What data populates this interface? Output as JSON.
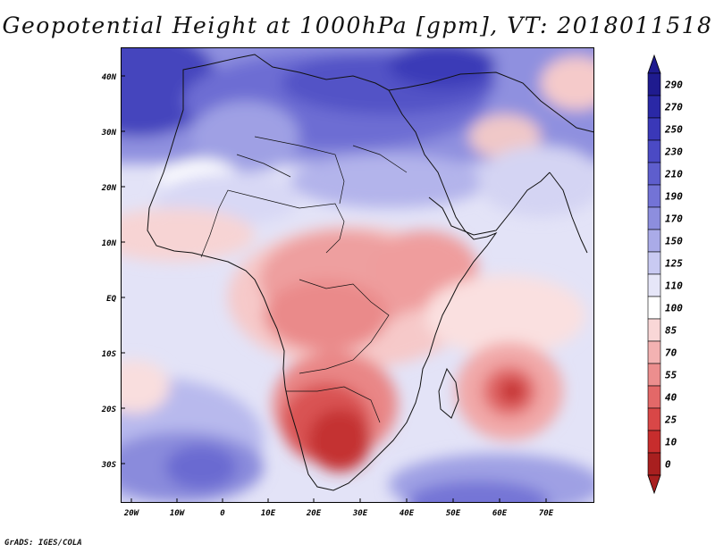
{
  "title": "Geopotential Height at 1000hPa [gpm], VT: 2018011518",
  "credit": "GrADS: IGES/COLA",
  "map": {
    "lat_axis": [
      "40N",
      "30N",
      "20N",
      "10N",
      "EQ",
      "10S",
      "20S",
      "30S"
    ],
    "lon_axis": [
      "20W",
      "10W",
      "0",
      "10E",
      "20E",
      "30E",
      "40E",
      "50E",
      "60E",
      "70E"
    ]
  },
  "colorbar": {
    "levels": [
      "290",
      "270",
      "250",
      "230",
      "210",
      "190",
      "170",
      "150",
      "125",
      "110",
      "100",
      "85",
      "70",
      "55",
      "40",
      "25",
      "10",
      "0"
    ],
    "colors": [
      "#1f1b8f",
      "#2a28a6",
      "#3a38b8",
      "#4b4ac4",
      "#5e5ecd",
      "#7373d6",
      "#8d8ede",
      "#aaabe8",
      "#c9caf2",
      "#e6e6f8",
      "#ffffff",
      "#f9d7d7",
      "#f3b2b2",
      "#ec8e8e",
      "#e36868",
      "#d94747",
      "#c72d2d",
      "#a81f1f"
    ]
  }
}
